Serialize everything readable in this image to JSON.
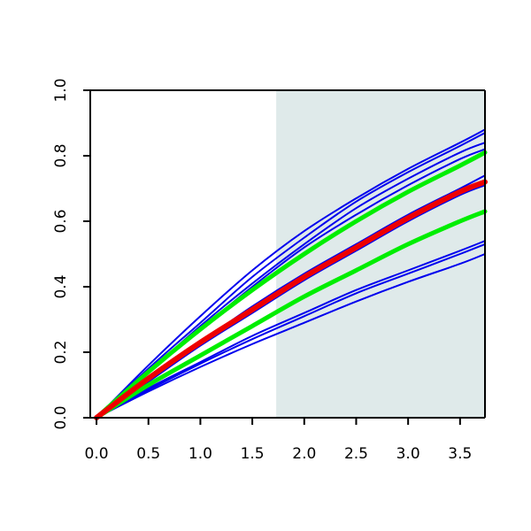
{
  "chart_data": {
    "type": "line",
    "title": "",
    "xlabel": "",
    "ylabel": "",
    "xlim": [
      -0.06,
      3.74
    ],
    "ylim": [
      0.0,
      1.0
    ],
    "x_ticks": [
      0.0,
      0.5,
      1.0,
      1.5,
      2.0,
      2.5,
      3.0,
      3.5
    ],
    "x_tick_labels": [
      "0.0",
      "0.5",
      "1.0",
      "1.5",
      "2.0",
      "2.5",
      "3.0",
      "3.5"
    ],
    "y_ticks": [
      0.0,
      0.2,
      0.4,
      0.6,
      0.8,
      1.0
    ],
    "y_tick_labels": [
      "0.0",
      "0.2",
      "0.4",
      "0.6",
      "0.8",
      "1.0"
    ],
    "grid": false,
    "legend": "none",
    "shaded_region": {
      "x_start": 1.73,
      "x_end": 3.74,
      "color": "#dfeaea"
    },
    "series": [
      {
        "color": "#0000ee",
        "width": "thin",
        "x": [
          0,
          0.5,
          1.0,
          1.5,
          2.0,
          2.5,
          3.0,
          3.5,
          3.74
        ],
        "y": [
          0,
          0.16,
          0.31,
          0.45,
          0.57,
          0.67,
          0.76,
          0.84,
          0.88
        ]
      },
      {
        "color": "#0000ee",
        "width": "thin",
        "x": [
          0,
          0.5,
          1.0,
          1.5,
          2.0,
          2.5,
          3.0,
          3.5,
          3.74
        ],
        "y": [
          0,
          0.15,
          0.29,
          0.43,
          0.55,
          0.66,
          0.75,
          0.83,
          0.87
        ]
      },
      {
        "color": "#0000ee",
        "width": "thin",
        "x": [
          0,
          0.5,
          1.0,
          1.5,
          2.0,
          2.5,
          3.0,
          3.5,
          3.74
        ],
        "y": [
          0,
          0.14,
          0.28,
          0.41,
          0.53,
          0.64,
          0.73,
          0.81,
          0.84
        ]
      },
      {
        "color": "#0000ee",
        "width": "thin",
        "x": [
          0,
          0.5,
          1.0,
          1.5,
          2.0,
          2.5,
          3.0,
          3.5,
          3.74
        ],
        "y": [
          0,
          0.14,
          0.27,
          0.4,
          0.52,
          0.62,
          0.71,
          0.79,
          0.82
        ]
      },
      {
        "color": "#0000ee",
        "width": "thin",
        "x": [
          0,
          0.5,
          1.0,
          1.5,
          2.0,
          2.5,
          3.0,
          3.5,
          3.74
        ],
        "y": [
          0,
          0.12,
          0.23,
          0.34,
          0.44,
          0.53,
          0.62,
          0.7,
          0.74
        ]
      },
      {
        "color": "#0000ee",
        "width": "thin",
        "x": [
          0,
          0.5,
          1.0,
          1.5,
          2.0,
          2.5,
          3.0,
          3.5,
          3.74
        ],
        "y": [
          0,
          0.11,
          0.22,
          0.32,
          0.42,
          0.51,
          0.6,
          0.68,
          0.71
        ]
      },
      {
        "color": "#0000ee",
        "width": "thin",
        "x": [
          0,
          0.5,
          1.0,
          1.5,
          2.0,
          2.5,
          3.0,
          3.5,
          3.74
        ],
        "y": [
          0,
          0.1,
          0.19,
          0.28,
          0.37,
          0.45,
          0.53,
          0.6,
          0.63
        ]
      },
      {
        "color": "#0000ee",
        "width": "thin",
        "x": [
          0,
          0.5,
          1.0,
          1.5,
          2.0,
          2.5,
          3.0,
          3.5,
          3.74
        ],
        "y": [
          0,
          0.09,
          0.17,
          0.25,
          0.32,
          0.39,
          0.45,
          0.51,
          0.54
        ]
      },
      {
        "color": "#0000ee",
        "width": "thin",
        "x": [
          0,
          0.5,
          1.0,
          1.5,
          2.0,
          2.5,
          3.0,
          3.5,
          3.74
        ],
        "y": [
          0,
          0.085,
          0.165,
          0.24,
          0.31,
          0.38,
          0.44,
          0.5,
          0.53
        ]
      },
      {
        "color": "#0000ee",
        "width": "thin",
        "x": [
          0,
          0.5,
          1.0,
          1.5,
          2.0,
          2.5,
          3.0,
          3.5,
          3.74
        ],
        "y": [
          0,
          0.08,
          0.155,
          0.225,
          0.29,
          0.355,
          0.415,
          0.47,
          0.5
        ]
      },
      {
        "color": "#00ee00",
        "width": "thick",
        "x": [
          0,
          0.5,
          1.0,
          1.5,
          2.0,
          2.5,
          3.0,
          3.5,
          3.74
        ],
        "y": [
          0,
          0.14,
          0.27,
          0.39,
          0.5,
          0.6,
          0.69,
          0.77,
          0.81
        ]
      },
      {
        "color": "#00ee00",
        "width": "thick",
        "x": [
          0,
          0.5,
          1.0,
          1.5,
          2.0,
          2.5,
          3.0,
          3.5,
          3.74
        ],
        "y": [
          0,
          0.1,
          0.19,
          0.28,
          0.37,
          0.45,
          0.53,
          0.6,
          0.63
        ]
      },
      {
        "color": "#ee0000",
        "width": "thicker",
        "x": [
          0,
          0.5,
          1.0,
          1.5,
          2.0,
          2.5,
          3.0,
          3.5,
          3.74
        ],
        "y": [
          0,
          0.12,
          0.23,
          0.33,
          0.43,
          0.52,
          0.61,
          0.69,
          0.72
        ]
      }
    ]
  }
}
